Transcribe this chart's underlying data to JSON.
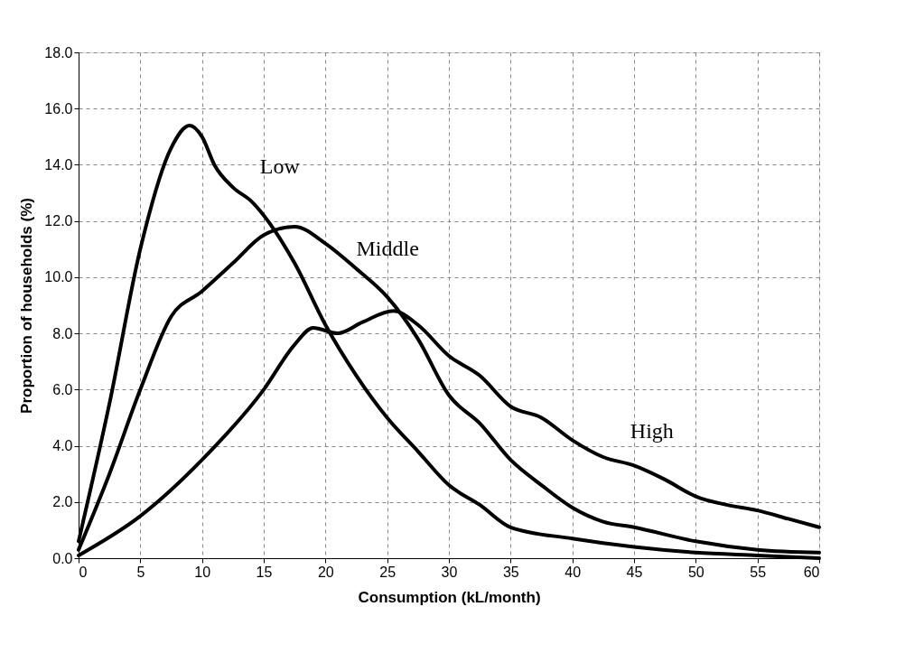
{
  "chart_data": {
    "type": "line",
    "xlabel": "Consumption (kL/month)",
    "ylabel": "Proportion of households (%)",
    "xlim": [
      0,
      60
    ],
    "ylim": [
      0,
      18
    ],
    "xticks": [
      0,
      5,
      10,
      15,
      20,
      25,
      30,
      35,
      40,
      45,
      50,
      55,
      60
    ],
    "yticks": [
      {
        "value": 0,
        "label": "0.0"
      },
      {
        "value": 2,
        "label": "2.0"
      },
      {
        "value": 4,
        "label": "4.0"
      },
      {
        "value": 6,
        "label": "6.0"
      },
      {
        "value": 8,
        "label": "8.0"
      },
      {
        "value": 10,
        "label": "10.0"
      },
      {
        "value": 12,
        "label": "12.0"
      },
      {
        "value": 14,
        "label": "14.0"
      },
      {
        "value": 16,
        "label": "16.0"
      },
      {
        "value": 18,
        "label": "18.0"
      }
    ],
    "grid": true,
    "legend": false,
    "marker": "none",
    "line_style": "solid",
    "series": [
      {
        "name": "Low",
        "color": "#000000",
        "x": [
          0,
          2.5,
          5,
          7.5,
          9,
          10,
          11,
          12.5,
          14,
          15,
          17.5,
          20,
          22.5,
          25,
          27.5,
          30,
          32.5,
          35,
          40,
          45,
          50,
          55,
          60
        ],
        "values": [
          0.6,
          5.5,
          11.0,
          14.6,
          15.4,
          15.0,
          14.0,
          13.2,
          12.7,
          12.2,
          10.5,
          8.3,
          6.5,
          5.0,
          3.8,
          2.6,
          1.9,
          1.1,
          0.7,
          0.4,
          0.2,
          0.1,
          0.0
        ]
      },
      {
        "name": "Middle",
        "color": "#000000",
        "x": [
          0,
          2.5,
          5,
          7.5,
          10,
          12.5,
          15,
          17.5,
          20,
          22.5,
          25,
          27.5,
          30,
          32.5,
          35,
          37.5,
          40,
          42.5,
          45,
          50,
          55,
          60
        ],
        "values": [
          0.3,
          3.0,
          6.0,
          8.6,
          9.5,
          10.5,
          11.5,
          11.8,
          11.2,
          10.3,
          9.3,
          7.8,
          5.8,
          4.8,
          3.5,
          2.6,
          1.8,
          1.3,
          1.1,
          0.6,
          0.3,
          0.2
        ]
      },
      {
        "name": "High",
        "color": "#000000",
        "x": [
          0,
          5,
          10,
          15,
          17.5,
          19,
          21,
          23,
          25.5,
          27.5,
          30,
          32.5,
          35,
          37.5,
          40,
          42.5,
          45,
          47.5,
          50,
          52.5,
          55,
          57.5,
          60
        ],
        "values": [
          0.1,
          1.5,
          3.5,
          6.0,
          7.6,
          8.2,
          8.0,
          8.4,
          8.8,
          8.3,
          7.2,
          6.5,
          5.4,
          5.0,
          4.2,
          3.6,
          3.3,
          2.8,
          2.2,
          1.9,
          1.7,
          1.4,
          1.1
        ]
      }
    ]
  }
}
